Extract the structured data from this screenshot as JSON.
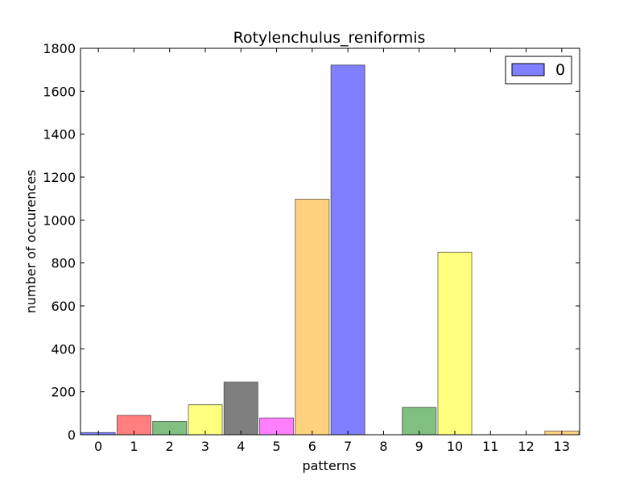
{
  "chart_data": {
    "type": "bar",
    "title": "Rotylenchulus_reniformis",
    "xlabel": "patterns",
    "ylabel": "number of occurences",
    "categories": [
      "0",
      "1",
      "2",
      "3",
      "4",
      "5",
      "6",
      "7",
      "8",
      "9",
      "10",
      "11",
      "12",
      "13"
    ],
    "values": [
      10,
      90,
      62,
      140,
      245,
      78,
      1097,
      1722,
      0,
      127,
      850,
      0,
      0,
      17
    ],
    "colors": [
      "#0000ff",
      "#ff0000",
      "#008000",
      "#ffff00",
      "#000000",
      "#ff00ff",
      "#ffa500",
      "#0000ff",
      "#ff0000",
      "#008000",
      "#ffff00",
      "#000000",
      "#ff00ff",
      "#ffa500"
    ],
    "bar_opacity": 0.5,
    "ylim": [
      0,
      1800
    ],
    "yticks": [
      0,
      200,
      400,
      600,
      800,
      1000,
      1200,
      1400,
      1600,
      1800
    ],
    "grid": false,
    "legend": {
      "placement": "top-right",
      "entries": [
        {
          "label": "0",
          "color": "#0000ff"
        }
      ]
    }
  }
}
